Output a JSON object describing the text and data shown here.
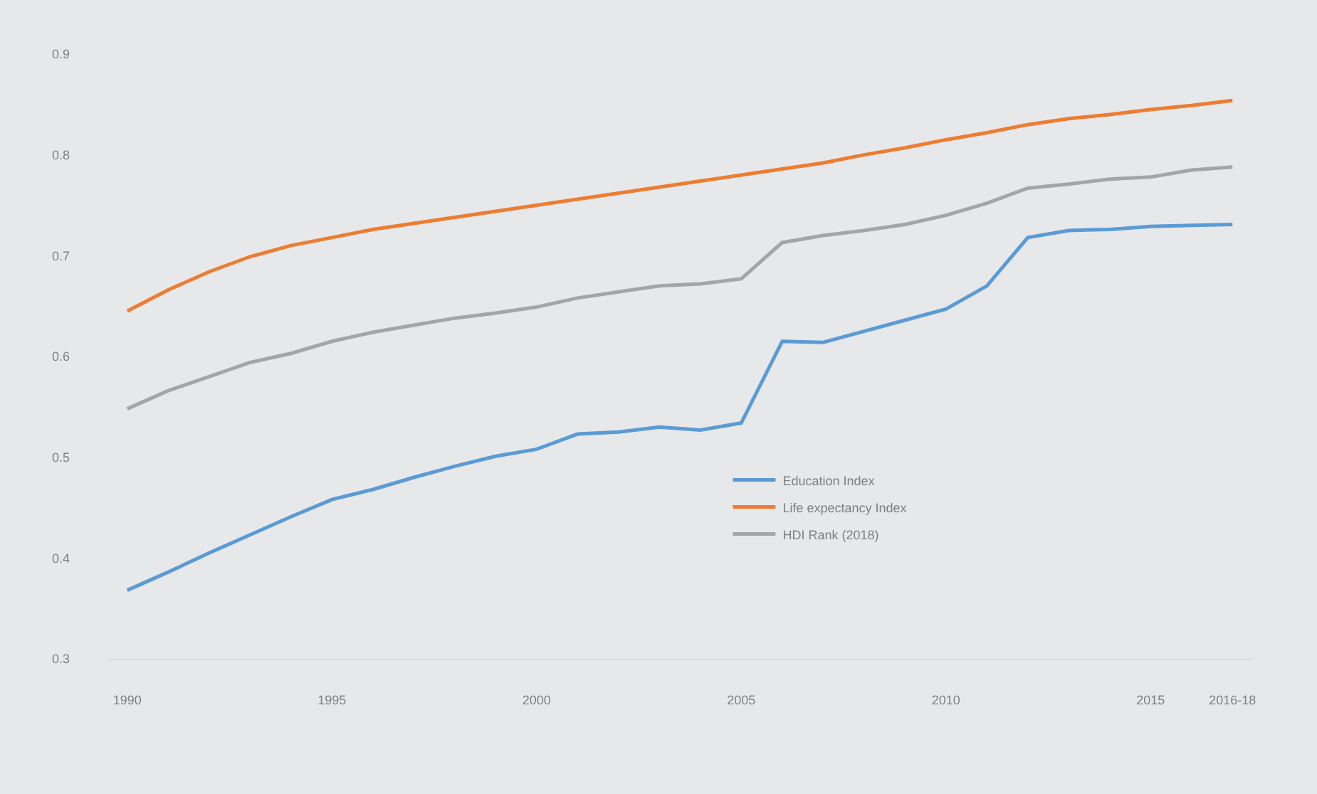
{
  "chart_data": {
    "type": "line",
    "categories": [
      "1990",
      null,
      null,
      null,
      null,
      "1995",
      null,
      null,
      null,
      null,
      "2000",
      null,
      null,
      null,
      null,
      "2005",
      null,
      null,
      null,
      null,
      "2010",
      null,
      null,
      null,
      null,
      "2015",
      null,
      "2016-18"
    ],
    "series": [
      {
        "name": "Education Index",
        "color": "#5b9bd5",
        "values": [
          0.368,
          0.386,
          0.405,
          0.423,
          0.441,
          0.458,
          0.468,
          0.48,
          0.491,
          0.501,
          0.508,
          0.523,
          0.525,
          0.53,
          0.527,
          0.534,
          0.615,
          0.614,
          0.625,
          0.636,
          0.647,
          0.67,
          0.718,
          0.725,
          0.726,
          0.729,
          0.73,
          0.731
        ]
      },
      {
        "name": "Life expectancy Index",
        "color": "#ed7d31",
        "values": [
          0.645,
          0.666,
          0.684,
          0.699,
          0.71,
          0.718,
          0.726,
          0.732,
          0.738,
          0.744,
          0.75,
          0.756,
          0.762,
          0.768,
          0.774,
          0.78,
          0.786,
          0.792,
          0.8,
          0.807,
          0.815,
          0.822,
          0.83,
          0.836,
          0.84,
          0.845,
          0.849,
          0.854
        ]
      },
      {
        "name": "HDI Rank (2018)",
        "color": "#a5a5a5",
        "values": [
          0.548,
          0.566,
          0.58,
          0.594,
          0.603,
          0.615,
          0.624,
          0.631,
          0.638,
          0.643,
          0.649,
          0.658,
          0.664,
          0.67,
          0.672,
          0.677,
          0.713,
          0.72,
          0.725,
          0.731,
          0.74,
          0.752,
          0.767,
          0.771,
          0.776,
          0.778,
          0.785,
          0.788
        ]
      }
    ],
    "ylim": [
      0.3,
      0.9
    ],
    "yticks": [
      0.3,
      0.4,
      0.5,
      0.6,
      0.7,
      0.8,
      0.9
    ],
    "grid": false,
    "legend": "center",
    "marker": "none",
    "line_style": "solid"
  }
}
